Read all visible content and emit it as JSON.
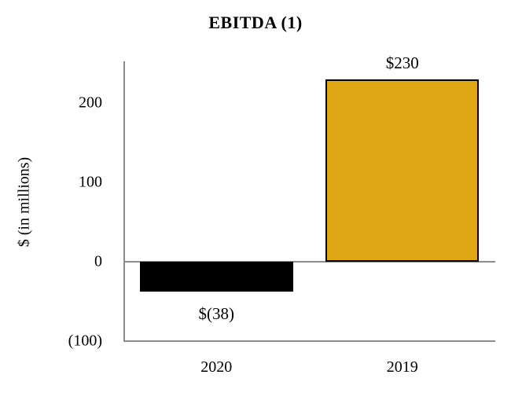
{
  "chart_data": {
    "type": "bar",
    "title": "EBITDA (1)",
    "ylabel": "$ (in millions)",
    "xlabel": "",
    "categories": [
      "2020",
      "2019"
    ],
    "values": [
      -38,
      230
    ],
    "bar_labels": [
      "$(38)",
      "$230"
    ],
    "bar_colors": [
      "#000000",
      "#E0A714"
    ],
    "bar_border_color": "#000000",
    "yticks": [
      {
        "label": "200",
        "value": 200
      },
      {
        "label": "100",
        "value": 100
      },
      {
        "label": "0",
        "value": 0
      },
      {
        "label": "(100)",
        "value": -100
      }
    ],
    "ylim": [
      -100,
      250
    ],
    "grid": "zero-line-only",
    "legend": "none",
    "axis_line_color": "#8c8c8c"
  }
}
